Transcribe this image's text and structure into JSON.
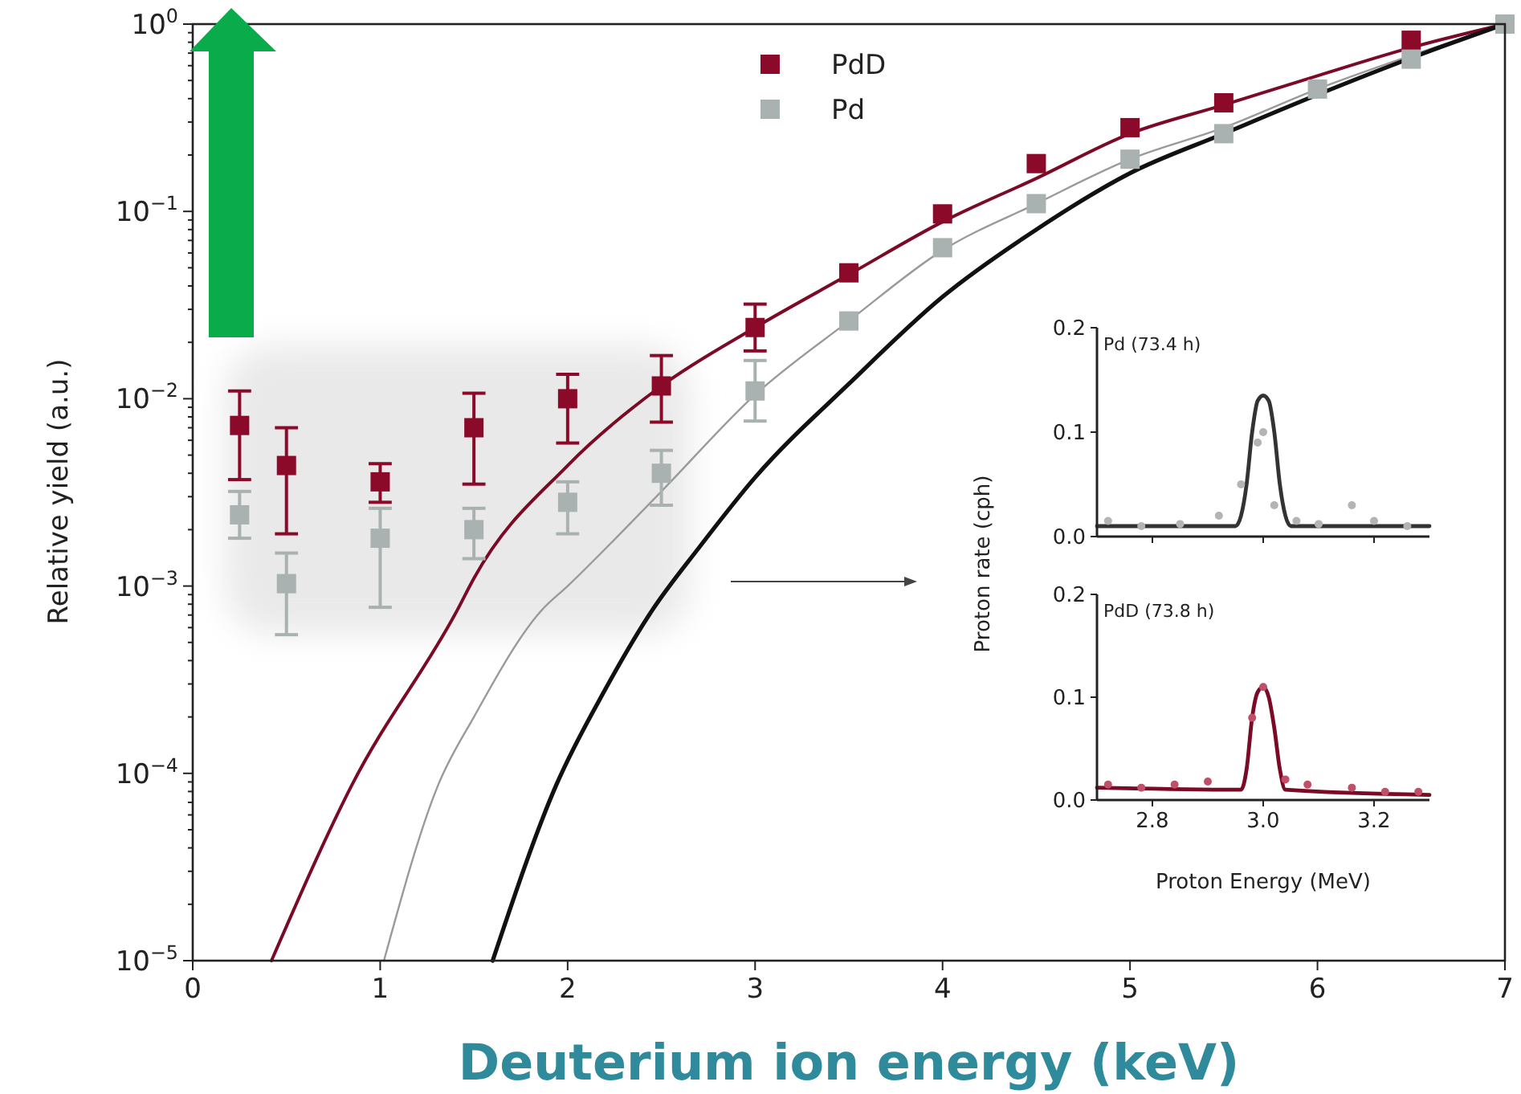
{
  "chart_data": [
    {
      "type": "scatter",
      "xlabel": "Deuterium ion energy (keV)",
      "ylabel": "Relative yield (a.u.)",
      "log": "y",
      "xlim": [
        0,
        7
      ],
      "ylim": [
        1e-05,
        1
      ],
      "xticks": [
        0,
        1,
        2,
        3,
        4,
        5,
        6,
        7
      ],
      "yticks": [
        {
          "value": 1e-05,
          "label": "10$^{−5}$"
        },
        {
          "value": 0.0001,
          "label": "10$^{−4}$"
        },
        {
          "value": 0.001,
          "label": "10$^{−3}$"
        },
        {
          "value": 0.01,
          "label": "10$^{−2}$"
        },
        {
          "value": 0.1,
          "label": "10$^{−1}$"
        },
        {
          "value": 1,
          "label": "10$^{0}$"
        },
        {
          "value": 2e-05,
          "label": null
        },
        {
          "value": 3e-05,
          "label": null
        },
        {
          "value": 4e-05,
          "label": null
        },
        {
          "value": 5e-05,
          "label": null
        },
        {
          "value": 6e-05,
          "label": null
        },
        {
          "value": 7e-05,
          "label": null
        },
        {
          "value": 8e-05,
          "label": null
        },
        {
          "value": 9e-05,
          "label": null
        },
        {
          "value": 0.0002,
          "label": null
        },
        {
          "value": 0.0003,
          "label": null
        },
        {
          "value": 0.0004,
          "label": null
        },
        {
          "value": 0.0005,
          "label": null
        },
        {
          "value": 0.0006,
          "label": null
        },
        {
          "value": 0.0007,
          "label": null
        },
        {
          "value": 0.0008,
          "label": null
        },
        {
          "value": 0.0009,
          "label": null
        },
        {
          "value": 0.002,
          "label": null
        },
        {
          "value": 0.003,
          "label": null
        },
        {
          "value": 0.004,
          "label": null
        },
        {
          "value": 0.005,
          "label": null
        },
        {
          "value": 0.006,
          "label": null
        },
        {
          "value": 0.007,
          "label": null
        },
        {
          "value": 0.008,
          "label": null
        },
        {
          "value": 0.009,
          "label": null
        },
        {
          "value": 0.02,
          "label": null
        },
        {
          "value": 0.03,
          "label": null
        },
        {
          "value": 0.04,
          "label": null
        },
        {
          "value": 0.05,
          "label": null
        },
        {
          "value": 0.06,
          "label": null
        },
        {
          "value": 0.07,
          "label": null
        },
        {
          "value": 0.08,
          "label": null
        },
        {
          "value": 0.09,
          "label": null
        },
        {
          "value": 0.2,
          "label": null
        },
        {
          "value": 0.3,
          "label": null
        },
        {
          "value": 0.4,
          "label": null
        },
        {
          "value": 0.5,
          "label": null
        },
        {
          "value": 0.6,
          "label": null
        },
        {
          "value": 0.7,
          "label": null
        },
        {
          "value": 0.8,
          "label": null
        },
        {
          "value": 0.9,
          "label": null
        }
      ],
      "grid": false,
      "legend": "top",
      "marker": "square",
      "series": [
        {
          "name": "PdD",
          "color": "#8b0a2a",
          "x": [
            0.25,
            0.5,
            1,
            1.5,
            2,
            2.5,
            3,
            3.5,
            4,
            4.5,
            5,
            5.5,
            6.5
          ],
          "values": [
            0.0072,
            0.0044,
            0.0036,
            0.007,
            0.01,
            0.0117,
            0.024,
            0.047,
            0.097,
            0.18,
            0.28,
            0.38,
            0.82
          ],
          "errors": [
            [
              0.0037,
              0.011
            ],
            [
              0.0019,
              0.007
            ],
            [
              0.0028,
              0.0045
            ],
            [
              0.0035,
              0.0107
            ],
            [
              0.0058,
              0.0135
            ],
            [
              0.0075,
              0.017
            ],
            [
              0.018,
              0.032
            ],
            null,
            null,
            null,
            null,
            null,
            null
          ]
        },
        {
          "name": "Pd",
          "color": "#a9b2b0",
          "x": [
            0.25,
            0.5,
            1,
            1.5,
            2,
            2.5,
            3,
            3.5,
            4,
            4.5,
            5,
            5.5,
            6,
            6.5,
            7
          ],
          "values": [
            0.0024,
            0.00103,
            0.0018,
            0.002,
            0.0028,
            0.004,
            0.011,
            0.026,
            0.064,
            0.11,
            0.19,
            0.26,
            0.45,
            0.65,
            1
          ],
          "errors": [
            [
              0.0018,
              0.0032
            ],
            [
              0.00055,
              0.0015
            ],
            [
              0.00077,
              0.0026
            ],
            [
              0.0014,
              0.0026
            ],
            [
              0.0019,
              0.0036
            ],
            [
              0.0027,
              0.0053
            ],
            [
              0.0076,
              0.016
            ],
            null,
            null,
            null,
            null,
            null,
            null,
            null,
            null
          ]
        },
        {
          "type": "line",
          "marker": "none",
          "color": "#7a0a25",
          "x": [
            0.42,
            0.85,
            1.41,
            1.5,
            2,
            2.5,
            3,
            3.5,
            4,
            4.5,
            5,
            5.5,
            6,
            6.5,
            7
          ],
          "values": [
            1e-05,
            8.7e-05,
            0.00074,
            0.0011,
            0.0044,
            0.0117,
            0.024,
            0.046,
            0.088,
            0.15,
            0.26,
            0.37,
            0.53,
            0.75,
            1
          ]
        },
        {
          "type": "line",
          "marker": "none",
          "color": "#9a9a9a",
          "x": [
            1.02,
            1.31,
            1.5,
            1.86,
            2,
            2.5,
            3,
            3.5,
            4,
            4.5,
            5,
            5.5,
            6,
            6.5,
            7
          ],
          "values": [
            1e-05,
            8.7e-05,
            0.0002,
            0.00074,
            0.001,
            0.0032,
            0.0105,
            0.026,
            0.062,
            0.11,
            0.19,
            0.28,
            0.45,
            0.68,
            1
          ]
        },
        {
          "type": "line",
          "marker": "none",
          "color": "#111111",
          "x": [
            1.6,
            1.94,
            2.2,
            2.45,
            2.7,
            3,
            3.5,
            4,
            4.5,
            5,
            5.5,
            6,
            6.5,
            7
          ],
          "values": [
            1e-05,
            8.7e-05,
            0.00028,
            0.00074,
            0.0016,
            0.0038,
            0.012,
            0.035,
            0.08,
            0.16,
            0.26,
            0.42,
            0.66,
            1
          ]
        }
      ]
    },
    {
      "type": "scatter",
      "annotations": [
        "Pd (73.4 h)"
      ],
      "xlim": [
        2.7,
        3.3
      ],
      "ylim": [
        0,
        0.2
      ],
      "xticks": [
        {
          "value": 2.8,
          "label": null
        },
        {
          "value": 3,
          "label": null
        },
        {
          "value": 3.2,
          "label": null
        }
      ],
      "tick_labels": "y",
      "grid": false,
      "marker": "circle",
      "yticks": [
        {
          "value": 0,
          "label": "0.0"
        },
        {
          "value": 0.1,
          "label": "0.1"
        },
        {
          "value": 0.2,
          "label": "0.2"
        }
      ],
      "series": [
        {
          "color": "#b4b4b4",
          "x": [
            2.72,
            2.78,
            2.85,
            2.92,
            2.96,
            2.99,
            3.0,
            3.02,
            3.06,
            3.1,
            3.16,
            3.2,
            3.26
          ],
          "values": [
            0.015,
            0.01,
            0.012,
            0.02,
            0.05,
            0.09,
            0.1,
            0.03,
            0.015,
            0.012,
            0.03,
            0.015,
            0.01
          ]
        },
        {
          "type": "line",
          "marker": "none",
          "color": "#333333",
          "x": [
            2.7,
            2.95,
            2.96,
            2.97,
            2.98,
            2.99,
            3.0,
            3.01,
            3.02,
            3.03,
            3.04,
            3.05,
            3.3
          ],
          "values": [
            0.01,
            0.01,
            0.02,
            0.05,
            0.1,
            0.13,
            0.135,
            0.13,
            0.1,
            0.05,
            0.02,
            0.01,
            0.01
          ]
        }
      ]
    },
    {
      "type": "scatter",
      "xlabel": "Proton Energy (MeV)",
      "ylabel": "Proton rate (cph)",
      "annotations": [
        "PdD (73.8 h)"
      ],
      "xlim": [
        2.7,
        3.3
      ],
      "ylim": [
        0,
        0.2
      ],
      "xticks": [
        {
          "value": 2.8,
          "label": "2.8"
        },
        {
          "value": 3,
          "label": "3.0"
        },
        {
          "value": 3.2,
          "label": "3.2"
        }
      ],
      "yticks": [
        {
          "value": 0,
          "label": "0.0"
        },
        {
          "value": 0.1,
          "label": "0.1"
        },
        {
          "value": 0.2,
          "label": "0.2"
        }
      ],
      "grid": false,
      "marker": "circle",
      "series": [
        {
          "color": "#c0506a",
          "x": [
            2.72,
            2.78,
            2.84,
            2.9,
            2.98,
            3.0,
            3.04,
            3.08,
            3.16,
            3.22,
            3.28
          ],
          "values": [
            0.015,
            0.012,
            0.015,
            0.018,
            0.08,
            0.11,
            0.02,
            0.015,
            0.012,
            0.008,
            0.008
          ]
        },
        {
          "type": "line",
          "marker": "none",
          "color": "#7a0a25",
          "x": [
            2.7,
            2.96,
            2.97,
            2.98,
            2.99,
            3.0,
            3.01,
            3.02,
            3.03,
            3.04,
            3.3
          ],
          "values": [
            0.012,
            0.01,
            0.03,
            0.08,
            0.105,
            0.11,
            0.1,
            0.07,
            0.03,
            0.01,
            0.005
          ]
        }
      ]
    }
  ]
}
